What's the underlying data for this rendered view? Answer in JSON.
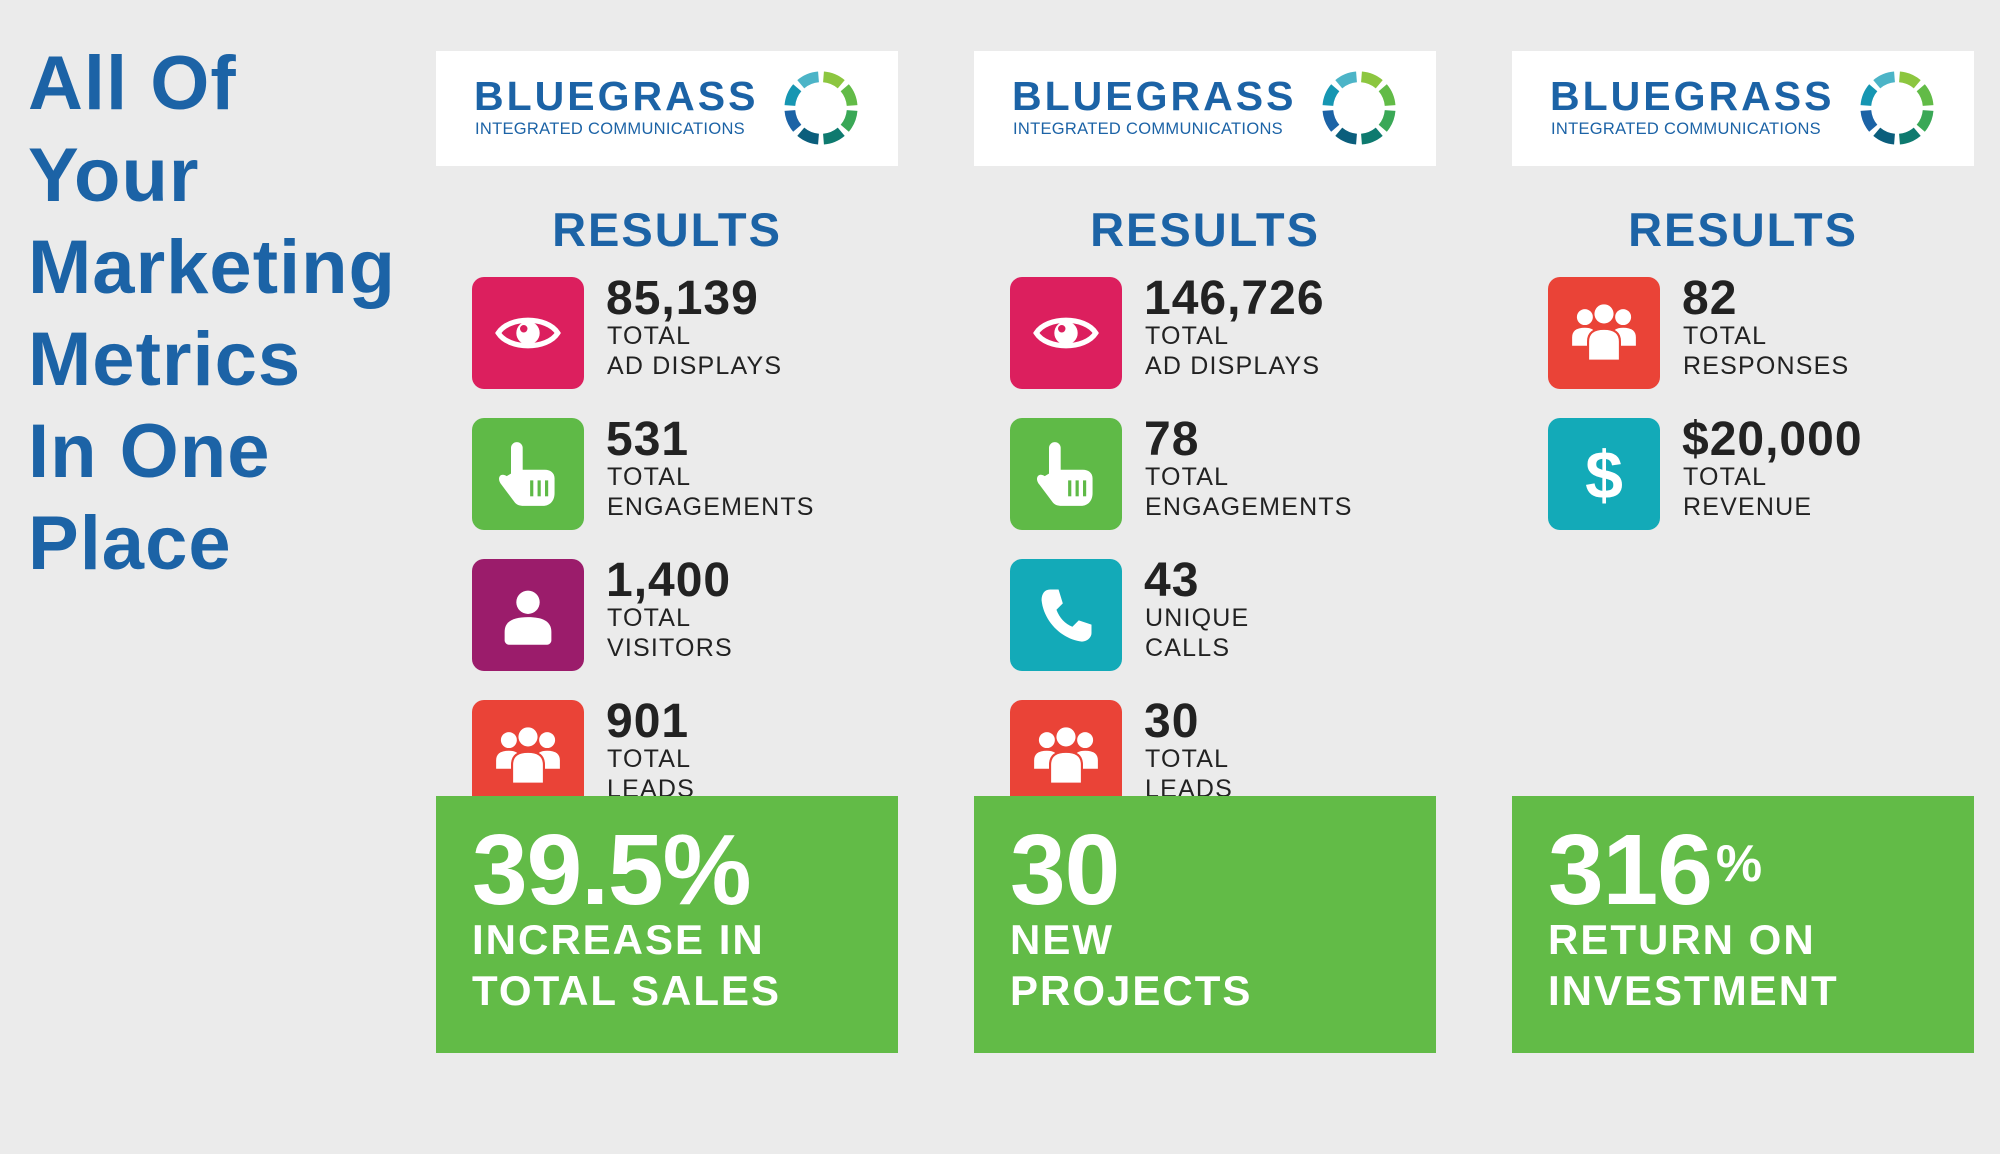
{
  "headline": [
    "All Of",
    "Your",
    "Marketing",
    "Metrics",
    "In One",
    "Place"
  ],
  "brand": {
    "name": "BLUEGRASS",
    "subtitle": "INTEGRATED COMMUNICATIONS"
  },
  "colors": {
    "blue": "#1c63a6",
    "green": "#62bb47",
    "pink": "#dc1f5e",
    "lime": "#5fba47",
    "purple": "#9b1c6b",
    "red": "#ea4337",
    "teal": "#13aab8"
  },
  "columns": [
    {
      "heading": "RESULTS",
      "metrics": [
        {
          "icon": "eye-icon",
          "color": "#dc1f5e",
          "value": "85,139",
          "label1": "TOTAL",
          "label2": "AD DISPLAYS"
        },
        {
          "icon": "pointing-hand-icon",
          "color": "#5fba47",
          "value": "531",
          "label1": "TOTAL",
          "label2": "ENGAGEMENTS"
        },
        {
          "icon": "user-icon",
          "color": "#9b1c6b",
          "value": "1,400",
          "label1": "TOTAL",
          "label2": "VISITORS"
        },
        {
          "icon": "group-icon",
          "color": "#ea4337",
          "value": "901",
          "label1": "TOTAL",
          "label2": "LEADS"
        }
      ],
      "highlight": {
        "big": "39.5%",
        "sup": "",
        "line1": "INCREASE IN",
        "line2": "TOTAL SALES"
      }
    },
    {
      "heading": "RESULTS",
      "metrics": [
        {
          "icon": "eye-icon",
          "color": "#dc1f5e",
          "value": "146,726",
          "label1": "TOTAL",
          "label2": "AD DISPLAYS"
        },
        {
          "icon": "pointing-hand-icon",
          "color": "#5fba47",
          "value": "78",
          "label1": "TOTAL",
          "label2": "ENGAGEMENTS"
        },
        {
          "icon": "phone-icon",
          "color": "#13aab8",
          "value": "43",
          "label1": "UNIQUE",
          "label2": "CALLS"
        },
        {
          "icon": "group-icon",
          "color": "#ea4337",
          "value": "30",
          "label1": "TOTAL",
          "label2": "LEADS"
        }
      ],
      "highlight": {
        "big": "30",
        "sup": "",
        "line1": "NEW",
        "line2": "PROJECTS"
      }
    },
    {
      "heading": "RESULTS",
      "metrics": [
        {
          "icon": "group-icon",
          "color": "#ea4337",
          "value": "82",
          "label1": "TOTAL",
          "label2": "RESPONSES"
        },
        {
          "icon": "dollar-icon",
          "color": "#13aab8",
          "value": "$20,000",
          "label1": "TOTAL",
          "label2": "REVENUE"
        }
      ],
      "highlight": {
        "big": "316",
        "sup": "%",
        "line1": "RETURN ON",
        "line2": "INVESTMENT"
      }
    }
  ]
}
